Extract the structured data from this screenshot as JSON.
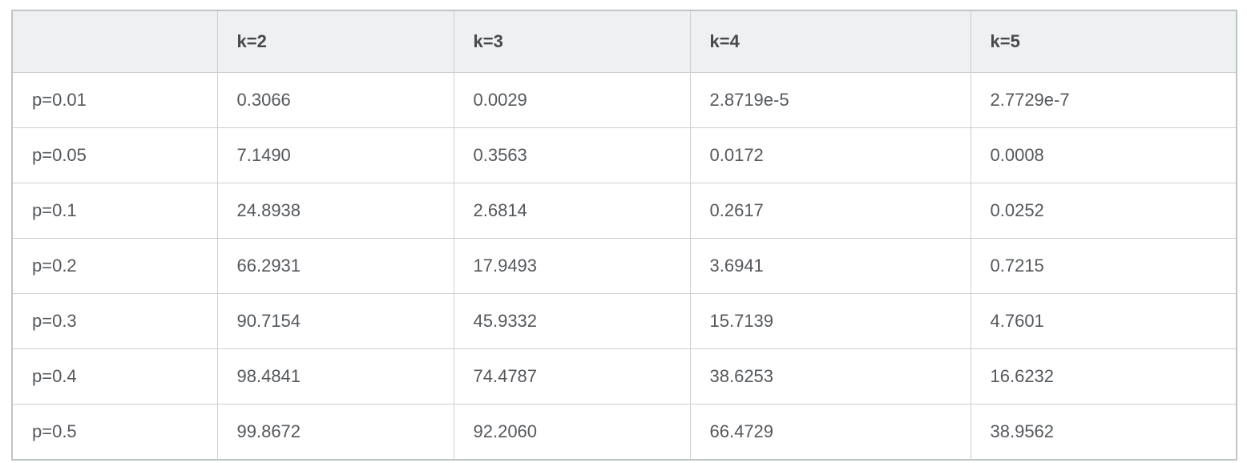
{
  "table": {
    "headers": [
      "",
      "k=2",
      "k=3",
      "k=4",
      "k=5"
    ],
    "rows": [
      {
        "label": "p=0.01",
        "values": [
          "0.3066",
          "0.0029",
          "2.8719e-5",
          "2.7729e-7"
        ]
      },
      {
        "label": "p=0.05",
        "values": [
          "7.1490",
          "0.3563",
          "0.0172",
          "0.0008"
        ]
      },
      {
        "label": "p=0.1",
        "values": [
          "24.8938",
          "2.6814",
          "0.2617",
          "0.0252"
        ]
      },
      {
        "label": "p=0.2",
        "values": [
          "66.2931",
          "17.9493",
          "3.6941",
          "0.7215"
        ]
      },
      {
        "label": "p=0.3",
        "values": [
          "90.7154",
          "45.9332",
          "15.7139",
          "4.7601"
        ]
      },
      {
        "label": "p=0.4",
        "values": [
          "98.4841",
          "74.4787",
          "38.6253",
          "16.6232"
        ]
      },
      {
        "label": "p=0.5",
        "values": [
          "99.8672",
          "92.2060",
          "66.4729",
          "38.9562"
        ]
      }
    ]
  },
  "chart_data": {
    "type": "table",
    "columns": [
      "",
      "k=2",
      "k=3",
      "k=4",
      "k=5"
    ],
    "row_labels": [
      "p=0.01",
      "p=0.05",
      "p=0.1",
      "p=0.2",
      "p=0.3",
      "p=0.4",
      "p=0.5"
    ],
    "series": [
      {
        "name": "k=2",
        "values": [
          0.3066,
          7.149,
          24.8938,
          66.2931,
          90.7154,
          98.4841,
          99.8672
        ]
      },
      {
        "name": "k=3",
        "values": [
          0.0029,
          0.3563,
          2.6814,
          17.9493,
          45.9332,
          74.4787,
          92.206
        ]
      },
      {
        "name": "k=4",
        "values": [
          2.8719e-05,
          0.0172,
          0.2617,
          3.6941,
          15.7139,
          38.6253,
          66.4729
        ]
      },
      {
        "name": "k=5",
        "values": [
          2.7729e-07,
          0.0008,
          0.0252,
          0.7215,
          4.7601,
          16.6232,
          38.9562
        ]
      }
    ],
    "title": "",
    "xlabel": "",
    "ylabel": ""
  },
  "colors": {
    "header_background": "#eef0f1",
    "outer_border": "#bfc4c7",
    "cell_border": "#ccd0d2",
    "header_text": "#464a4e",
    "cell_text": "#54585c",
    "page_background": "#ffffff"
  }
}
